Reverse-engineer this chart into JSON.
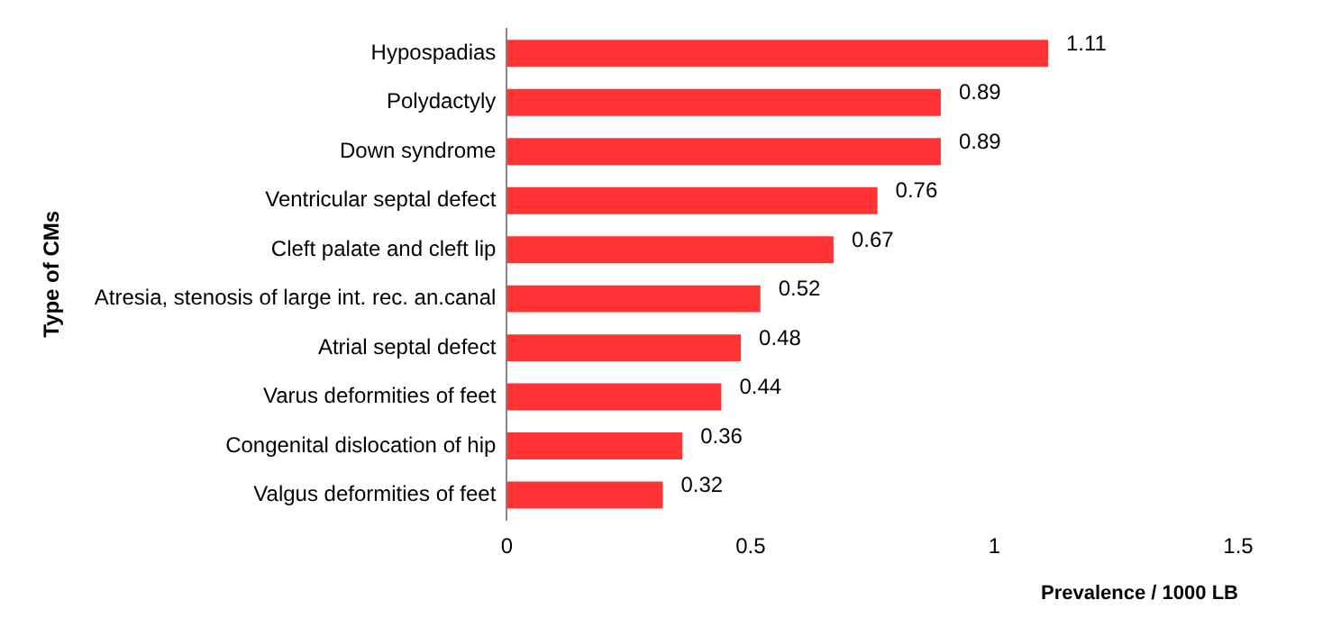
{
  "chart_data": {
    "type": "bar",
    "orientation": "horizontal",
    "xlabel": "Prevalence / 1000 LB",
    "ylabel": "Type of CMs",
    "categories": [
      "Hypospadias",
      "Polydactyly",
      "Down syndrome",
      "Ventricular septal defect",
      "Cleft palate and cleft lip",
      "Atresia, stenosis of large int. rec. an.canal",
      "Atrial septal defect",
      "Varus deformities of feet",
      "Congenital dislocation of hip",
      "Valgus deformities of feet"
    ],
    "values": [
      1.11,
      0.89,
      0.89,
      0.76,
      0.67,
      0.52,
      0.48,
      0.44,
      0.36,
      0.32
    ],
    "color": "#ff3333",
    "xlim": [
      0,
      1.5
    ],
    "xticks": [
      0,
      0.5,
      1,
      1.5
    ],
    "grid": false,
    "legend": false,
    "data_labels": true
  }
}
